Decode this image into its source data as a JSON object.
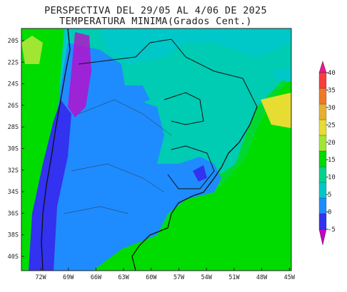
{
  "header": {
    "title": "PERSPECTIVA DEL 29/05 AL 4/06 DE 2025",
    "subtitle": "TEMPERATURA MINIMA(Grados Cent.)"
  },
  "map": {
    "lat_labels": [
      "20S",
      "22S",
      "24S",
      "26S",
      "28S",
      "30S",
      "32S",
      "34S",
      "36S",
      "38S",
      "40S"
    ],
    "lon_labels": [
      "72W",
      "69W",
      "66W",
      "63W",
      "60W",
      "57W",
      "54W",
      "51W",
      "48W",
      "45W"
    ]
  },
  "colorbar": {
    "ticks": [
      -5,
      0,
      5,
      10,
      15,
      20,
      25,
      30,
      35,
      40
    ],
    "colors": [
      "#c800c8",
      "#3232f0",
      "#1e8cff",
      "#00c8c8",
      "#00d28c",
      "#00dc00",
      "#a0e632",
      "#e6dc32",
      "#e6af2d",
      "#f07828",
      "#fa3c3c",
      "#f0148c"
    ]
  }
}
